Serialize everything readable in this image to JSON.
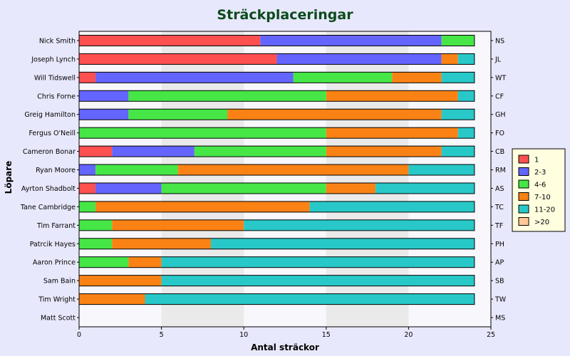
{
  "chart_data": {
    "type": "bar",
    "orientation": "horizontal",
    "stacked": true,
    "title": "Sträckplaceringar",
    "xlabel": "Antal sträckor",
    "ylabel": "Löpare",
    "xlim": [
      0,
      25
    ],
    "xticks": [
      0,
      5,
      10,
      15,
      20,
      25
    ],
    "grid": "alternating-vertical-bands",
    "legend": "right",
    "categories": [
      "Nick Smith",
      "Joseph Lynch",
      "Will Tidswell",
      "Chris Forne",
      "Greig Hamilton",
      "Fergus O'Neill",
      "Cameron Bonar",
      "Ryan Moore",
      "Ayrton Shadbolt",
      "Tane Cambridge",
      "Tim Farrant",
      "Patrcik Hayes",
      "Aaron Prince",
      "Sam Bain",
      "Tim Wright",
      "Matt Scott"
    ],
    "abbreviations": [
      "NS",
      "JL",
      "WT",
      "CF",
      "GH",
      "FO",
      "CB",
      "RM",
      "AS",
      "TC",
      "TF",
      "PH",
      "AP",
      "SB",
      "TW",
      "MS"
    ],
    "series": [
      {
        "name": "1",
        "color": "#ff5050",
        "values": [
          11,
          12,
          1,
          0,
          0,
          0,
          2,
          0,
          1,
          0,
          0,
          0,
          0,
          0,
          0,
          0
        ]
      },
      {
        "name": "2-3",
        "color": "#6464ff",
        "values": [
          11,
          10,
          12,
          3,
          3,
          0,
          5,
          1,
          4,
          0,
          0,
          0,
          0,
          0,
          0,
          0
        ]
      },
      {
        "name": "4-6",
        "color": "#46e646",
        "values": [
          2,
          0,
          6,
          12,
          6,
          15,
          8,
          5,
          10,
          1,
          2,
          2,
          3,
          0,
          0,
          0
        ]
      },
      {
        "name": "7-10",
        "color": "#fa8214",
        "values": [
          0,
          1,
          3,
          8,
          13,
          8,
          7,
          14,
          3,
          13,
          8,
          6,
          2,
          5,
          4,
          0
        ]
      },
      {
        "name": "11-20",
        "color": "#28c8c8",
        "values": [
          0,
          1,
          2,
          1,
          2,
          1,
          2,
          4,
          6,
          10,
          14,
          16,
          19,
          19,
          20,
          0
        ]
      },
      {
        "name": ">20",
        "color": "#ffc896",
        "values": [
          0,
          0,
          0,
          0,
          0,
          0,
          0,
          0,
          0,
          0,
          0,
          0,
          0,
          0,
          0,
          0
        ]
      }
    ]
  }
}
